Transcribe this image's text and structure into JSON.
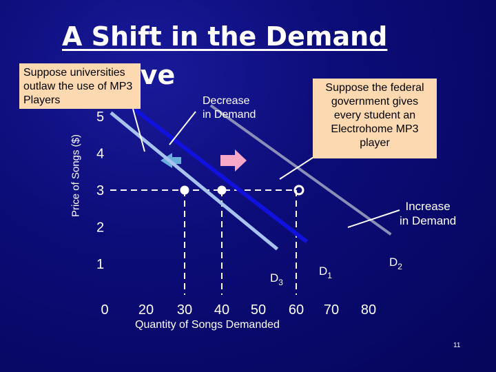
{
  "title_line1": "A Shift in the Demand",
  "title_line2": "Curve",
  "callouts": {
    "universities": "Suppose universities outlaw the use of MP3 Players",
    "federal": "Suppose the federal government gives every student an Electrohome MP3 player"
  },
  "labels": {
    "decrease": [
      "Decrease",
      "in Demand"
    ],
    "increase": [
      "Increase",
      "in Demand"
    ]
  },
  "slide_number": "11",
  "colors": {
    "background": "#0c0c78",
    "callout_bg": "#fcd9b0",
    "d1": "#1111dd",
    "d2": "#8a8fb8",
    "d3": "#a8c4ee",
    "arrow_left": "#6aaedd",
    "arrow_right": "#f7a8c8"
  },
  "chart_data": {
    "type": "line",
    "xlabel": "Quantity of Songs Demanded",
    "ylabel": "Price of Songs ($)",
    "x_ticks": [
      0,
      20,
      30,
      40,
      50,
      60,
      70,
      80
    ],
    "y_ticks": [
      1,
      2,
      3,
      4,
      5
    ],
    "series": [
      {
        "name": "D1",
        "label_main": "D",
        "label_sub": "1",
        "x": [
          12,
          63
        ],
        "y": [
          5.3,
          1.6
        ]
      },
      {
        "name": "D2",
        "label_main": "D",
        "label_sub": "2",
        "x": [
          37,
          86
        ],
        "y": [
          5.3,
          1.8
        ]
      },
      {
        "name": "D3",
        "label_main": "D",
        "label_sub": "3",
        "x": [
          3,
          55
        ],
        "y": [
          5.1,
          1.4
        ]
      }
    ],
    "points": [
      {
        "x": 30,
        "y": 3
      },
      {
        "x": 40,
        "y": 3
      },
      {
        "x": 60,
        "y": 3
      }
    ],
    "reference_price": 3,
    "grid": false,
    "annotations": [
      "Decrease in Demand",
      "Increase in Demand"
    ]
  }
}
